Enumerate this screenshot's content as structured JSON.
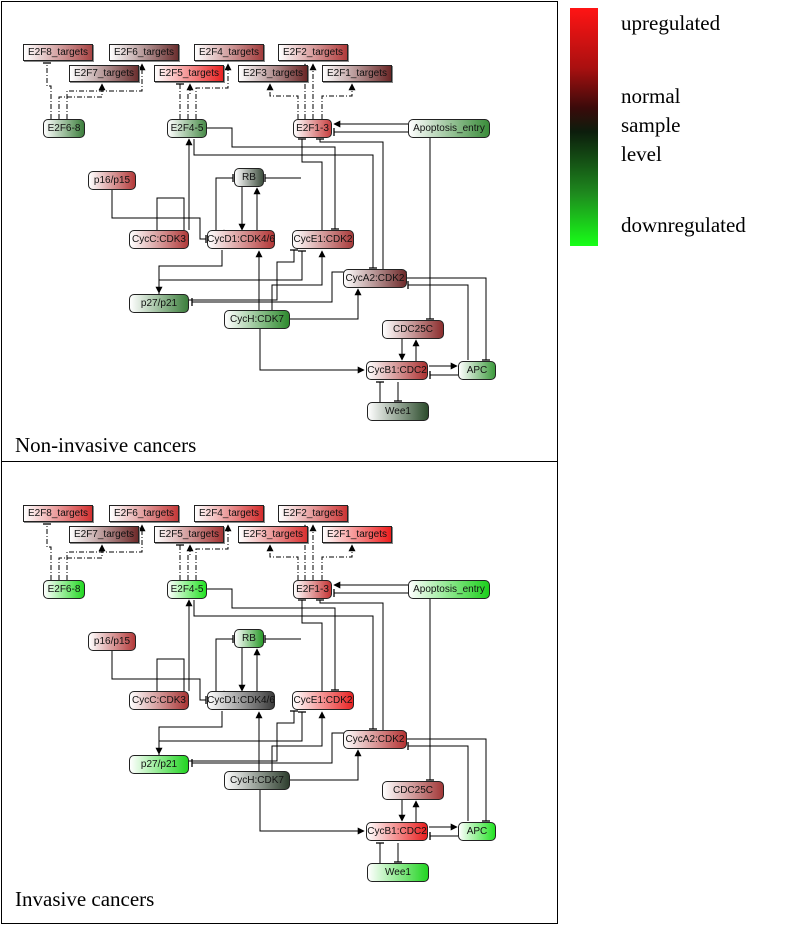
{
  "legend": {
    "upregulated": "upregulated",
    "normal_lines": [
      "normal",
      "sample",
      "level"
    ],
    "downregulated": "downregulated",
    "colors": {
      "up": "#ff1414",
      "normal": "#1a0a0a",
      "down": "#18ff18"
    }
  },
  "labels": {
    "E2F8_targets": "E2F8_targets",
    "E2F6_targets": "E2F6_targets",
    "E2F4_targets": "E2F4_targets",
    "E2F2_targets": "E2F2_targets",
    "E2F7_targets": "E2F7_targets",
    "E2F5_targets": "E2F5_targets",
    "E2F3_targets": "E2F3_targets",
    "E2F1_targets": "E2F1_targets",
    "E2F6_8": "E2F6-8",
    "E2F4_5": "E2F4-5",
    "E2F1_3": "E2F1-3",
    "Apoptosis_entry": "Apoptosis_entry",
    "p16_p15": "p16/p15",
    "RB": "RB",
    "CycC_CDK3": "CycC:CDK3",
    "CycD1_CDK4_6": "CycD1:CDK4/6",
    "CycE1_CDK2": "CycE1:CDK2",
    "CycA2_CDK2": "CycA2:CDK2",
    "p27_p21": "p27/p21",
    "CycH_CDK7": "CycH:CDK7",
    "CDC25C": "CDC25C",
    "CycB1_CDC2": "CycB1:CDC2",
    "APC": "APC",
    "Wee1": "Wee1"
  },
  "panels": [
    {
      "title": "Non-invasive cancers",
      "node_colors": {
        "E2F8_targets": "#a84444",
        "E2F6_targets": "#6a2e2e",
        "E2F4_targets": "#a23c3c",
        "E2F2_targets": "#b03a3a",
        "E2F7_targets": "#6a2e2e",
        "E2F5_targets": "#e82222",
        "E2F3_targets": "#6a2626",
        "E2F1_targets": "#6a2626",
        "E2F6_8": "#3c7e3c",
        "E2F4_5": "#4a8c4a",
        "E2F1_3": "#c84040",
        "Apoptosis_entry": "#3a8c3a",
        "p16_p15": "#b43a3a",
        "RB": "#3e4e3e",
        "CycC_CDK3": "#b03a3a",
        "CycD1_CDK4_6": "#b23636",
        "CycE1_CDK2": "#a83a3a",
        "CycA2_CDK2": "#6e2a2a",
        "p27_p21": "#3c7e3c",
        "CycH_CDK7": "#2e8a2e",
        "CDC25C": "#8c2e2e",
        "CycB1_CDC2": "#ac3232",
        "APC": "#3c9a3c",
        "Wee1": "#2c4c2c"
      }
    },
    {
      "title": "Invasive cancers",
      "node_colors": {
        "E2F8_targets": "#d23030",
        "E2F6_targets": "#c43838",
        "E2F4_targets": "#d42c2c",
        "E2F2_targets": "#cc3434",
        "E2F7_targets": "#6e2a2a",
        "E2F5_targets": "#a43434",
        "E2F3_targets": "#d83030",
        "E2F1_targets": "#ee1e1e",
        "E2F6_8": "#22d822",
        "E2F4_5": "#22e222",
        "E2F1_3": "#c43434",
        "Apoptosis_entry": "#1cd01c",
        "p16_p15": "#b43a3a",
        "RB": "#2a9a2a",
        "CycC_CDK3": "#a83434",
        "CycD1_CDK4_6": "#3c3c3c",
        "CycE1_CDK2": "#e82222",
        "CycA2_CDK2": "#b43232",
        "p27_p21": "#22d422",
        "CycH_CDK7": "#2e3e2e",
        "CDC25C": "#a23838",
        "CycB1_CDC2": "#e81e1e",
        "APC": "#22e222",
        "Wee1": "#22d422"
      }
    }
  ]
}
